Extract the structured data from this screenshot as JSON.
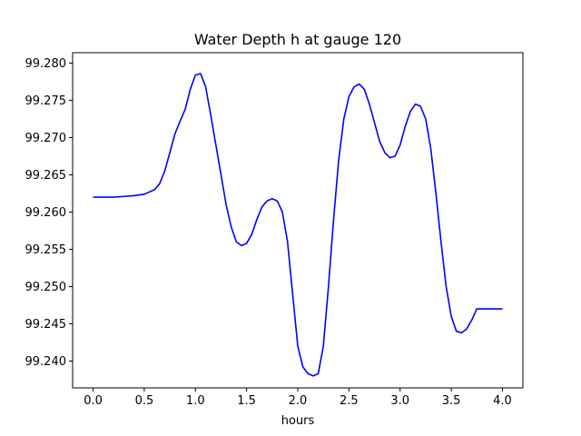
{
  "chart_data": {
    "type": "line",
    "title": "Water Depth h at gauge 120",
    "xlabel": "hours",
    "ylabel": "",
    "xlim": [
      -0.2,
      4.2
    ],
    "ylim": [
      99.2364,
      99.2814
    ],
    "xticks": [
      "0.0",
      "0.5",
      "1.0",
      "1.5",
      "2.0",
      "2.5",
      "3.0",
      "3.5",
      "4.0"
    ],
    "xtick_values": [
      0.0,
      0.5,
      1.0,
      1.5,
      2.0,
      2.5,
      3.0,
      3.5,
      4.0
    ],
    "yticks": [
      "99.240",
      "99.245",
      "99.250",
      "99.255",
      "99.260",
      "99.265",
      "99.270",
      "99.275",
      "99.280"
    ],
    "ytick_values": [
      99.24,
      99.245,
      99.25,
      99.255,
      99.26,
      99.265,
      99.27,
      99.275,
      99.28
    ],
    "grid": false,
    "series": [
      {
        "color": "#0000ff",
        "x": [
          0.0,
          0.1,
          0.2,
          0.3,
          0.4,
          0.5,
          0.6,
          0.65,
          0.7,
          0.75,
          0.8,
          0.85,
          0.9,
          0.95,
          1.0,
          1.05,
          1.1,
          1.15,
          1.2,
          1.25,
          1.3,
          1.35,
          1.4,
          1.45,
          1.5,
          1.55,
          1.6,
          1.65,
          1.7,
          1.75,
          1.8,
          1.85,
          1.9,
          1.95,
          2.0,
          2.05,
          2.1,
          2.15,
          2.2,
          2.25,
          2.3,
          2.35,
          2.4,
          2.45,
          2.5,
          2.55,
          2.6,
          2.65,
          2.7,
          2.75,
          2.8,
          2.85,
          2.9,
          2.95,
          3.0,
          3.05,
          3.1,
          3.15,
          3.2,
          3.25,
          3.3,
          3.35,
          3.4,
          3.45,
          3.5,
          3.55,
          3.6,
          3.65,
          3.7,
          3.75,
          3.8,
          3.85,
          3.9,
          3.95,
          4.0
        ],
        "y": [
          99.262,
          99.262,
          99.262,
          99.2621,
          99.2622,
          99.2624,
          99.263,
          99.2638,
          99.2655,
          99.268,
          99.2705,
          99.2722,
          99.2738,
          99.2765,
          99.2784,
          99.2786,
          99.2768,
          99.273,
          99.269,
          99.265,
          99.261,
          99.258,
          99.256,
          99.2555,
          99.2558,
          99.257,
          99.259,
          99.2607,
          99.2615,
          99.2618,
          99.2615,
          99.26,
          99.256,
          99.249,
          99.242,
          99.2392,
          99.2383,
          99.238,
          99.2383,
          99.242,
          99.25,
          99.259,
          99.267,
          99.2725,
          99.2755,
          99.2768,
          99.2772,
          99.2765,
          99.2745,
          99.272,
          99.2695,
          99.268,
          99.2673,
          99.2675,
          99.269,
          99.2715,
          99.2735,
          99.2745,
          99.2742,
          99.2725,
          99.2685,
          99.2625,
          99.256,
          99.25,
          99.246,
          99.244,
          99.2438,
          99.2443,
          99.2455,
          99.247,
          99.247,
          99.247,
          99.247,
          99.247,
          99.247
        ]
      }
    ]
  }
}
